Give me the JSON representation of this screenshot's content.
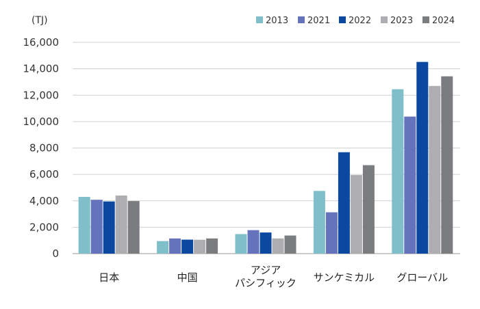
{
  "chart_data": {
    "type": "bar",
    "unit_label": "(TJ)",
    "categories": [
      [
        "日本"
      ],
      [
        "中国"
      ],
      [
        "アジア",
        "パシフィック"
      ],
      [
        "サンケミカル"
      ],
      [
        "グローバル"
      ]
    ],
    "series": [
      {
        "name": "2013",
        "color": "#7fbfca",
        "values": [
          4300,
          950,
          1480,
          4750,
          12450
        ]
      },
      {
        "name": "2021",
        "color": "#6573bd",
        "values": [
          4080,
          1150,
          1780,
          3130,
          10380
        ]
      },
      {
        "name": "2022",
        "color": "#0b48a0",
        "values": [
          3950,
          1060,
          1600,
          7680,
          14520
        ]
      },
      {
        "name": "2023",
        "color": "#aeaeb2",
        "values": [
          4400,
          1050,
          1150,
          5950,
          12700
        ]
      },
      {
        "name": "2024",
        "color": "#7b7c80",
        "values": [
          3980,
          1150,
          1370,
          6700,
          13430
        ]
      }
    ],
    "ylim": [
      0,
      16000
    ],
    "yticks": [
      0,
      2000,
      4000,
      6000,
      8000,
      10000,
      12000,
      14000,
      16000
    ],
    "ytick_labels": [
      "0",
      "2,000",
      "4,000",
      "6,000",
      "8,000",
      "10,000",
      "12,000",
      "14,000",
      "16,000"
    ],
    "grid": true,
    "legend_position": "top-right"
  }
}
